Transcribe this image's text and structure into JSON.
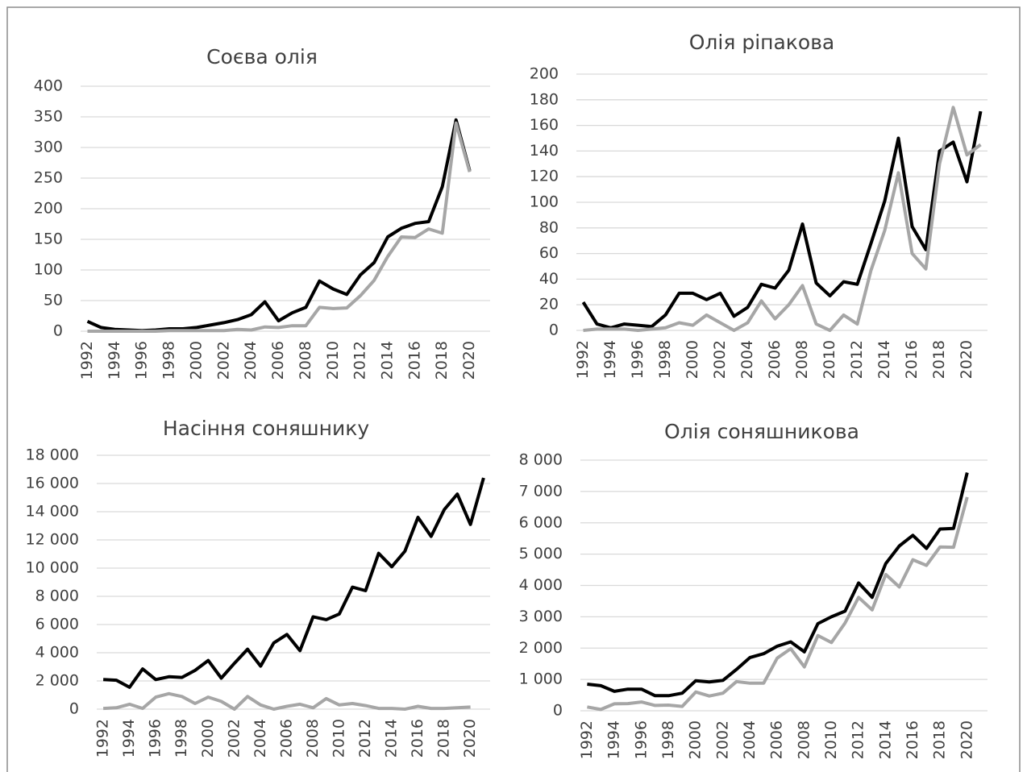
{
  "chart_data": [
    {
      "type": "line",
      "title": "Соєва олія",
      "categories": [
        "1992",
        null,
        "1994",
        null,
        "1996",
        null,
        "1998",
        null,
        "2000",
        null,
        "2002",
        null,
        "2004",
        null,
        "2006",
        null,
        "2008",
        null,
        "2010",
        null,
        "2012",
        null,
        "2014",
        null,
        "2016",
        null,
        "2018",
        null,
        "2020"
      ],
      "series": [
        {
          "color": "#000000",
          "values": [
            16,
            6,
            3,
            2,
            1,
            2,
            4,
            4,
            6,
            10,
            14,
            19,
            27,
            48,
            17,
            30,
            39,
            82,
            69,
            60,
            92,
            112,
            154,
            168,
            176,
            179,
            236,
            345,
            262
          ]
        },
        {
          "color": "#a6a6a6",
          "values": [
            0,
            0,
            0,
            0,
            0,
            0,
            1,
            1,
            1,
            1,
            1,
            3,
            2,
            7,
            6,
            9,
            9,
            39,
            37,
            38,
            58,
            83,
            122,
            154,
            153,
            167,
            160,
            340,
            260
          ]
        }
      ],
      "ylim": [
        0,
        400
      ],
      "yticks": [
        0,
        50,
        100,
        150,
        200,
        250,
        300,
        350,
        400
      ],
      "grid": true
    },
    {
      "type": "line",
      "title": "Олія ріпакова",
      "categories": [
        "1992",
        null,
        "1994",
        null,
        "1996",
        null,
        "1998",
        null,
        "2000",
        null,
        "2002",
        null,
        "2004",
        null,
        "2006",
        null,
        "2008",
        null,
        "2010",
        null,
        "2012",
        null,
        "2014",
        null,
        "2016",
        null,
        "2018",
        null,
        "2020",
        null
      ],
      "series": [
        {
          "color": "#000000",
          "values": [
            22,
            5,
            2,
            5,
            4,
            3,
            12,
            29,
            29,
            24,
            29,
            11,
            18,
            36,
            33,
            47,
            83,
            37,
            27,
            38,
            36,
            68,
            101,
            150,
            81,
            63,
            140,
            147,
            116,
            171
          ]
        },
        {
          "color": "#a6a6a6",
          "values": [
            0,
            1,
            1,
            1,
            0,
            1,
            2,
            6,
            4,
            12,
            6,
            0,
            6,
            23,
            9,
            20,
            35,
            5,
            0,
            12,
            5,
            47,
            78,
            123,
            60,
            48,
            130,
            174,
            137,
            145
          ]
        }
      ],
      "ylim": [
        0,
        200
      ],
      "yticks": [
        0,
        20,
        40,
        60,
        80,
        100,
        120,
        140,
        160,
        180,
        200
      ],
      "grid": true
    },
    {
      "type": "line",
      "title": "Насіння соняшнику",
      "categories": [
        "1992",
        null,
        "1994",
        null,
        "1996",
        null,
        "1998",
        null,
        "2000",
        null,
        "2002",
        null,
        "2004",
        null,
        "2006",
        null,
        "2008",
        null,
        "2010",
        null,
        "2012",
        null,
        "2014",
        null,
        "2016",
        null,
        "2018",
        null,
        "2020",
        null
      ],
      "series": [
        {
          "color": "#000000",
          "values": [
            2100,
            2050,
            1550,
            2850,
            2100,
            2300,
            2250,
            2750,
            3450,
            2200,
            3250,
            4250,
            3050,
            4700,
            5300,
            4150,
            6550,
            6350,
            6750,
            8650,
            8400,
            11050,
            10100,
            11200,
            13600,
            12250,
            14150,
            15250,
            13100,
            16400
          ]
        },
        {
          "color": "#a6a6a6",
          "values": [
            50,
            100,
            350,
            50,
            850,
            1100,
            900,
            400,
            850,
            550,
            0,
            900,
            300,
            0,
            200,
            350,
            100,
            750,
            300,
            400,
            250,
            50,
            50,
            0,
            200,
            50,
            50,
            100,
            150,
            null
          ]
        }
      ],
      "ylim": [
        0,
        18000
      ],
      "yticks": [
        0,
        {
          "value": 2000,
          "label": "2 000"
        },
        {
          "value": 4000,
          "label": "4 000"
        },
        {
          "value": 6000,
          "label": "6 000"
        },
        {
          "value": 8000,
          "label": "8 000"
        },
        {
          "value": 10000,
          "label": "10 000"
        },
        {
          "value": 12000,
          "label": "12 000"
        },
        {
          "value": 14000,
          "label": "14 000"
        },
        {
          "value": 16000,
          "label": "16 000"
        },
        {
          "value": 18000,
          "label": "18 000"
        }
      ],
      "grid": true
    },
    {
      "type": "line",
      "title": "Олія соняшникова",
      "categories": [
        "1992",
        null,
        "1994",
        null,
        "1996",
        null,
        "1998",
        null,
        "2000",
        null,
        "2002",
        null,
        "2004",
        null,
        "2006",
        null,
        "2008",
        null,
        "2010",
        null,
        "2012",
        null,
        "2014",
        null,
        "2016",
        null,
        "2018",
        null,
        "2020"
      ],
      "series": [
        {
          "color": "#000000",
          "values": [
            850,
            800,
            620,
            690,
            690,
            480,
            480,
            560,
            960,
            920,
            970,
            1320,
            1700,
            1820,
            2060,
            2200,
            1880,
            2780,
            3000,
            3180,
            4080,
            3620,
            4700,
            5260,
            5600,
            5180,
            5800,
            5820,
            7600
          ]
        },
        {
          "color": "#a6a6a6",
          "values": [
            120,
            40,
            220,
            230,
            280,
            170,
            180,
            140,
            600,
            470,
            560,
            930,
            880,
            880,
            1680,
            1980,
            1400,
            2400,
            2180,
            2800,
            3620,
            3220,
            4350,
            3950,
            4820,
            4640,
            5230,
            5220,
            6820
          ]
        }
      ],
      "ylim": [
        0,
        8000
      ],
      "yticks": [
        0,
        {
          "value": 1000,
          "label": "1 000"
        },
        {
          "value": 2000,
          "label": "2 000"
        },
        {
          "value": 3000,
          "label": "3 000"
        },
        {
          "value": 4000,
          "label": "4 000"
        },
        {
          "value": 5000,
          "label": "5 000"
        },
        {
          "value": 6000,
          "label": "6 000"
        },
        {
          "value": 7000,
          "label": "7 000"
        },
        {
          "value": 8000,
          "label": "8 000"
        }
      ],
      "grid": true
    }
  ]
}
